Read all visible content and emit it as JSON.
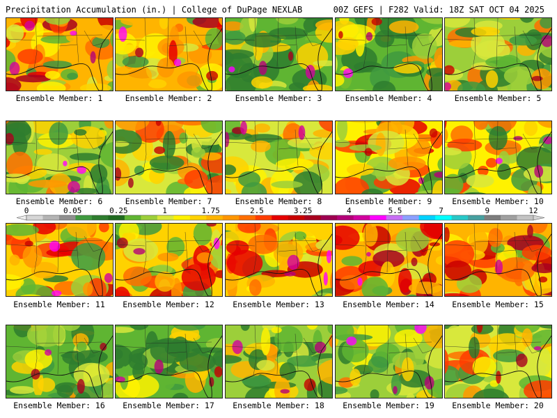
{
  "header": {
    "left": "Precipitation Accumulation (in.) | College of DuPage NEXLAB",
    "right": "00Z GEFS | F282 Valid: 18Z SAT OCT 04 2025"
  },
  "members": [
    {
      "label": "Ensemble Member: 1"
    },
    {
      "label": "Ensemble Member: 2"
    },
    {
      "label": "Ensemble Member: 3"
    },
    {
      "label": "Ensemble Member: 4"
    },
    {
      "label": "Ensemble Member: 5"
    },
    {
      "label": "Ensemble Member: 6"
    },
    {
      "label": "Ensemble Member: 7"
    },
    {
      "label": "Ensemble Member: 8"
    },
    {
      "label": "Ensemble Member: 9"
    },
    {
      "label": "Ensemble Member: 10"
    },
    {
      "label": "Ensemble Member: 11"
    },
    {
      "label": "Ensemble Member: 12"
    },
    {
      "label": "Ensemble Member: 13"
    },
    {
      "label": "Ensemble Member: 14"
    },
    {
      "label": "Ensemble Member: 15"
    },
    {
      "label": "Ensemble Member: 16"
    },
    {
      "label": "Ensemble Member: 17"
    },
    {
      "label": "Ensemble Member: 18"
    },
    {
      "label": "Ensemble Member: 19"
    },
    {
      "label": "Ensemble Member: 20"
    }
  ],
  "colorbar": {
    "tick_labels": [
      "0",
      "0.05",
      "0.25",
      "1",
      "1.75",
      "2.5",
      "3.25",
      "4",
      "5.5",
      "7",
      "9",
      "12"
    ],
    "colors": [
      "#d6d6d6",
      "#b4b4b4",
      "#8f8f8f",
      "#3f9a3f",
      "#2e7d2e",
      "#1f6a1f",
      "#5fb532",
      "#9ccf3a",
      "#d8e83c",
      "#fff200",
      "#ffd200",
      "#ffb400",
      "#ff9600",
      "#ff6e00",
      "#ff3c00",
      "#e60000",
      "#c80000",
      "#a8001e",
      "#9e0050",
      "#b40078",
      "#d2009e",
      "#ff00ff",
      "#c86ef5",
      "#8ca0ff",
      "#00d2ff",
      "#00ffff",
      "#28c8c8",
      "#46a0a0",
      "#7d7d7d",
      "#a0a0a0",
      "#c3c3c3"
    ]
  }
}
